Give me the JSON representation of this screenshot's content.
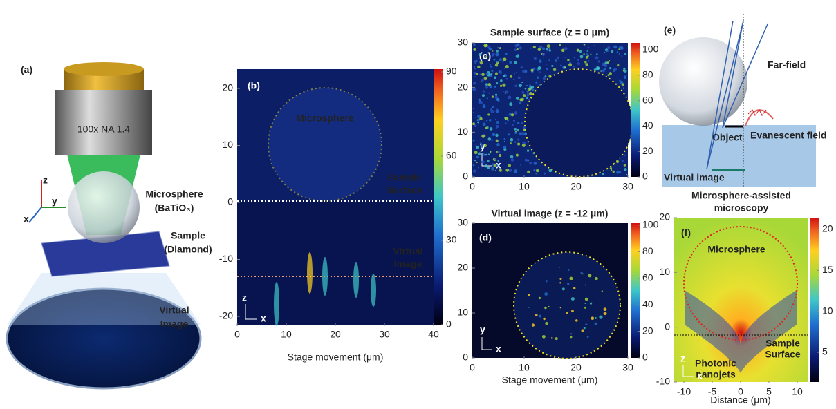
{
  "figure": {
    "a": {
      "label": "(a)",
      "objective": "100x NA 1.4",
      "axes": [
        "z",
        "y",
        "x"
      ],
      "microsphere": [
        "Microsphere",
        "(BaTiO₃)"
      ],
      "sample": [
        "Sample",
        "(Diamond)"
      ],
      "virtual": [
        "Virtual",
        "Image"
      ]
    },
    "b": {
      "label": "(b)",
      "xticks": [
        0,
        10,
        20,
        30,
        40
      ],
      "yticks": [
        20,
        10,
        0,
        -10,
        -20
      ],
      "xlabel": "Stage movement (μm)",
      "cbar_ticks": [
        0,
        30,
        60,
        90
      ],
      "microsphere": "Microsphere",
      "surface": [
        "Sample",
        "Surface"
      ],
      "virtual": [
        "Virtual",
        "Image"
      ],
      "axes": [
        "z",
        "x"
      ]
    },
    "c": {
      "title": "Sample surface (z = 0 μm)",
      "label": "(c)",
      "xticks": [
        0,
        10,
        20,
        30
      ],
      "yticks": [
        30,
        20,
        10,
        0
      ],
      "cbar_ticks": [
        0,
        20,
        40,
        60,
        80,
        100
      ],
      "axes": [
        "y",
        "x"
      ]
    },
    "d": {
      "title": "Virtual image (z = -12 μm)",
      "label": "(d)",
      "xticks": [
        0,
        10,
        20,
        30
      ],
      "yticks": [
        30,
        20,
        10,
        0
      ],
      "xlabel": "Stage movement (μm)",
      "cbar_ticks": [
        0,
        20,
        40,
        60,
        80,
        100
      ],
      "axes": [
        "y",
        "x"
      ]
    },
    "e": {
      "label": "(e)",
      "far_field": "Far-field",
      "evanescent": "Evanescent field",
      "object": "Object",
      "virtual": "Virtual image",
      "caption": [
        "Microsphere-assisted",
        "microscopy"
      ]
    },
    "f": {
      "label": "(f)",
      "xticks": [
        -10,
        -5,
        0,
        5,
        10
      ],
      "yticks": [
        20,
        10,
        0,
        -10
      ],
      "xlabel": "Distance (μm)",
      "cbar_ticks": [
        20,
        15,
        10,
        5
      ],
      "microsphere": "Microsphere",
      "surface": [
        "Sample",
        "Surface"
      ],
      "nanojets": [
        "Photonic",
        "nanojets"
      ],
      "axes": [
        "z",
        "x"
      ]
    }
  }
}
